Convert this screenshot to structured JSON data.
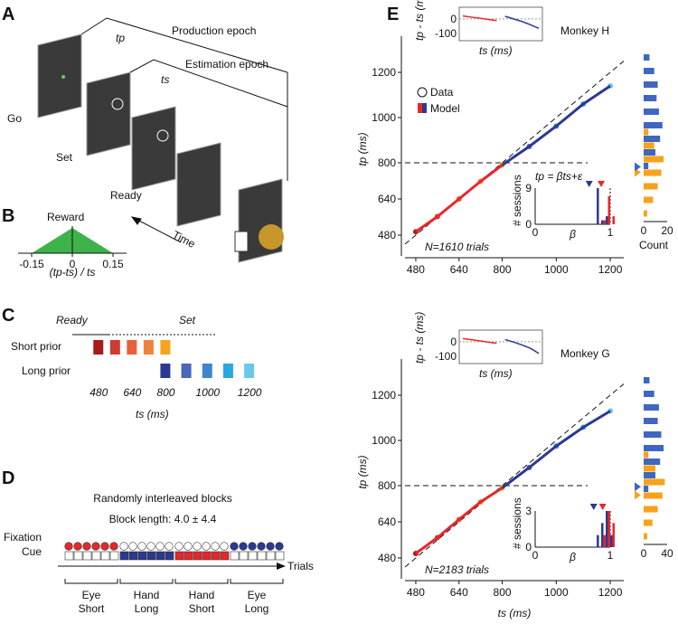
{
  "panel_a": {
    "label": "A",
    "production": "Production epoch",
    "estimation": "Estimation epoch",
    "tp": "tp",
    "ts": "ts",
    "go": "Go",
    "set": "Set",
    "ready": "Ready",
    "time": "Time"
  },
  "panel_b": {
    "label": "B",
    "title": "Reward",
    "xticks": [
      -0.15,
      0,
      0.15
    ],
    "xlim": [
      -0.2,
      0.2
    ],
    "xlabel": "(tp-ts) / ts",
    "color": "#3db34a"
  },
  "panel_c": {
    "label": "C",
    "ready": "Ready",
    "set": "Set",
    "short": "Short prior",
    "long": "Long prior",
    "short_values": [
      480,
      560,
      640,
      720,
      800
    ],
    "long_values": [
      800,
      900,
      1000,
      1100,
      1200
    ],
    "short_colors": [
      "#a51c1c",
      "#cf3b2c",
      "#e8603a",
      "#f0823c",
      "#f7a21b"
    ],
    "long_colors": [
      "#2b3990",
      "#4a67b8",
      "#3f86cf",
      "#28a8e0",
      "#6cc7ec"
    ],
    "xticks": [
      480,
      640,
      800,
      1000,
      1200
    ],
    "xlim": [
      440,
      1260
    ],
    "xlabel": "ts (ms)"
  },
  "panel_d": {
    "label": "D",
    "title": "Randomly interleaved blocks",
    "subtitle": "Block length: 4.0 ± 4.4",
    "fixation": "Fixation",
    "cue": "Cue",
    "trials": "Trials",
    "blocks": [
      {
        "effector": "Eye",
        "prior": "Short",
        "color": "#e8262a"
      },
      {
        "effector": "Hand",
        "prior": "Long",
        "color": "#2b3990"
      },
      {
        "effector": "Hand",
        "prior": "Short",
        "color": "#e8262a"
      },
      {
        "effector": "Eye",
        "prior": "Long",
        "color": "#2b3990"
      }
    ]
  },
  "panel_e": {
    "label": "E",
    "xlim": [
      440,
      1250
    ],
    "ylim": [
      420,
      1300
    ],
    "xticks": [
      480,
      640,
      800,
      1000,
      1200
    ],
    "yticks": [
      480,
      640,
      800,
      1000,
      1200
    ],
    "xlabel": "ts (ms)",
    "ylabel": "tp (ms)",
    "legend": [
      "Data",
      "Model"
    ],
    "equation": "tp = βts+ε",
    "inset_ylabel": "tp - ts (ms)",
    "inset_xlabel": "ts (ms)",
    "beta_ylabel": "# sessions",
    "beta_label": "β",
    "beta_xticks": [
      0,
      1
    ],
    "charts": [
      {
        "title": "Monkey H",
        "note": "N=1610 trials",
        "x": [
          480,
          560,
          640,
          720,
          800,
          900,
          1000,
          1100,
          1200
        ],
        "y": [
          495,
          562,
          640,
          718,
          790,
          872,
          962,
          1060,
          1140
        ],
        "resid_yticks": [
          0,
          -100
        ],
        "resid": [
          20,
          12,
          5,
          -4,
          -12,
          18,
          0,
          -18,
          -40,
          -65
        ],
        "beta_yticks": [
          0,
          9
        ],
        "beta_blue": [
          0,
          0,
          9,
          1,
          2,
          0
        ],
        "beta_red": [
          0,
          0,
          0,
          1,
          7,
          2
        ],
        "beta_mean": [
          0.72,
          0.88
        ],
        "hist_yedges": [
          560,
          620,
          680,
          740,
          800,
          860,
          920,
          980,
          1040,
          1100,
          1160,
          1220,
          1280
        ],
        "hist_orange": [
          3,
          8,
          12,
          15,
          17,
          9,
          4,
          0,
          0,
          0,
          0,
          0
        ],
        "hist_blue": [
          0,
          0,
          0,
          4,
          10,
          14,
          16,
          13,
          11,
          12,
          9,
          5
        ],
        "hist_xticks": [
          0,
          20
        ],
        "hist_xlabel": "Count"
      },
      {
        "title": "Monkey G",
        "note": "N=2183 trials",
        "x": [
          480,
          560,
          640,
          720,
          800,
          900,
          1000,
          1100,
          1200
        ],
        "y": [
          500,
          570,
          650,
          728,
          790,
          880,
          975,
          1058,
          1130
        ],
        "resid_yticks": [
          0,
          -100
        ],
        "resid": [
          22,
          14,
          6,
          -3,
          -10,
          15,
          -2,
          -22,
          -45,
          -80
        ],
        "beta_yticks": [
          0,
          3
        ],
        "beta_blue": [
          0,
          0,
          1,
          2,
          3,
          1
        ],
        "beta_red": [
          0,
          0,
          0,
          1,
          3,
          2
        ],
        "beta_mean": [
          0.78,
          0.9
        ],
        "hist_yedges": [
          560,
          620,
          680,
          740,
          800,
          860,
          920,
          980,
          1040,
          1100,
          1160,
          1220,
          1280
        ],
        "hist_orange": [
          6,
          15,
          24,
          32,
          36,
          20,
          8,
          0,
          0,
          0,
          0,
          0
        ],
        "hist_blue": [
          0,
          0,
          0,
          8,
          20,
          28,
          34,
          30,
          24,
          26,
          18,
          10
        ],
        "hist_xticks": [
          0,
          40
        ]
      }
    ]
  }
}
